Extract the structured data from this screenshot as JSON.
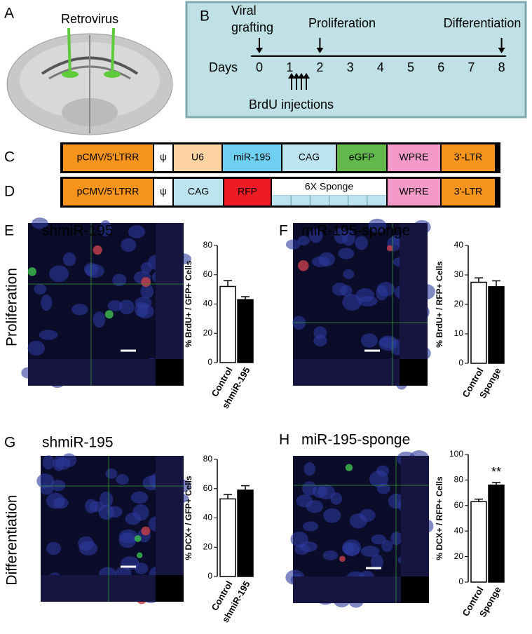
{
  "panel_a": {
    "label": "A",
    "title": "Retrovirus"
  },
  "timeline": {
    "label": "B",
    "axis_label": "Days",
    "days": [
      0,
      1,
      2,
      3,
      4,
      5,
      6,
      7,
      8
    ],
    "events": [
      {
        "lines": [
          "Viral",
          "grafting"
        ]
      },
      {
        "lines": [
          "Proliferation"
        ]
      },
      {
        "lines": [
          "Differentiation"
        ]
      }
    ],
    "injections": "BrdU injections"
  },
  "constructs": [
    {
      "label": "C",
      "parts": [
        "pCMV/5'LTRR",
        "ψ",
        "U6",
        "miR-195",
        "CAG",
        "eGFP",
        "WPRE",
        "3'-LTR"
      ],
      "colors": [
        "#f7941d",
        "#ffffff",
        "#fcd3a1",
        "#6ecff0",
        "#bde4ee",
        "#62b84a",
        "#f49ac9",
        "#f7941d"
      ]
    },
    {
      "label": "D",
      "parts": [
        "pCMV/5'LTRR",
        "ψ",
        "CAG",
        "RFP",
        "6X Sponge",
        "WPRE",
        "3'-LTR"
      ],
      "colors": [
        "#f7941d",
        "#ffffff",
        "#bde4ee",
        "#ed1c24",
        "#ffffff",
        "#f49ac9",
        "#f7941d"
      ]
    }
  ],
  "row_labels": [
    "Proliferation",
    "Differentiation"
  ],
  "chart_data": [
    {
      "type": "bar",
      "label": "E",
      "title": "shmiR-195",
      "ylabel": "% BrdU+ / GFP+ Cells",
      "categories": [
        "Control",
        "shmiR-195"
      ],
      "values": [
        52,
        43
      ],
      "errors": [
        4,
        2
      ],
      "colors": [
        "#ffffff",
        "#000000"
      ],
      "ylim": [
        0,
        80
      ],
      "yticks": [
        0,
        20,
        40,
        60,
        80
      ]
    },
    {
      "type": "bar",
      "label": "F",
      "title": "miR-195-sponge",
      "ylabel": "% BrdU+ / RFP+ Cells",
      "categories": [
        "Control",
        "Sponge"
      ],
      "values": [
        27.5,
        26
      ],
      "errors": [
        1.5,
        2
      ],
      "colors": [
        "#ffffff",
        "#000000"
      ],
      "ylim": [
        0,
        40
      ],
      "yticks": [
        0,
        10,
        20,
        30,
        40
      ]
    },
    {
      "type": "bar",
      "label": "G",
      "title": "shmiR-195",
      "ylabel": "% DCX+ / GFP+ Cells",
      "categories": [
        "Control",
        "shmiR-195"
      ],
      "values": [
        53,
        59
      ],
      "errors": [
        3,
        3
      ],
      "colors": [
        "#ffffff",
        "#000000"
      ],
      "ylim": [
        0,
        80
      ],
      "yticks": [
        0,
        20,
        40,
        60,
        80
      ]
    },
    {
      "type": "bar",
      "label": "H",
      "title": "miR-195-sponge",
      "ylabel": "% DCX+ / RFP+ Cells",
      "categories": [
        "Control",
        "Sponge"
      ],
      "values": [
        63,
        76
      ],
      "errors": [
        2,
        2
      ],
      "value_annotations": [
        null,
        "**"
      ],
      "colors": [
        "#ffffff",
        "#000000"
      ],
      "ylim": [
        0,
        100
      ],
      "yticks": [
        0,
        20,
        40,
        60,
        80,
        100
      ]
    }
  ]
}
